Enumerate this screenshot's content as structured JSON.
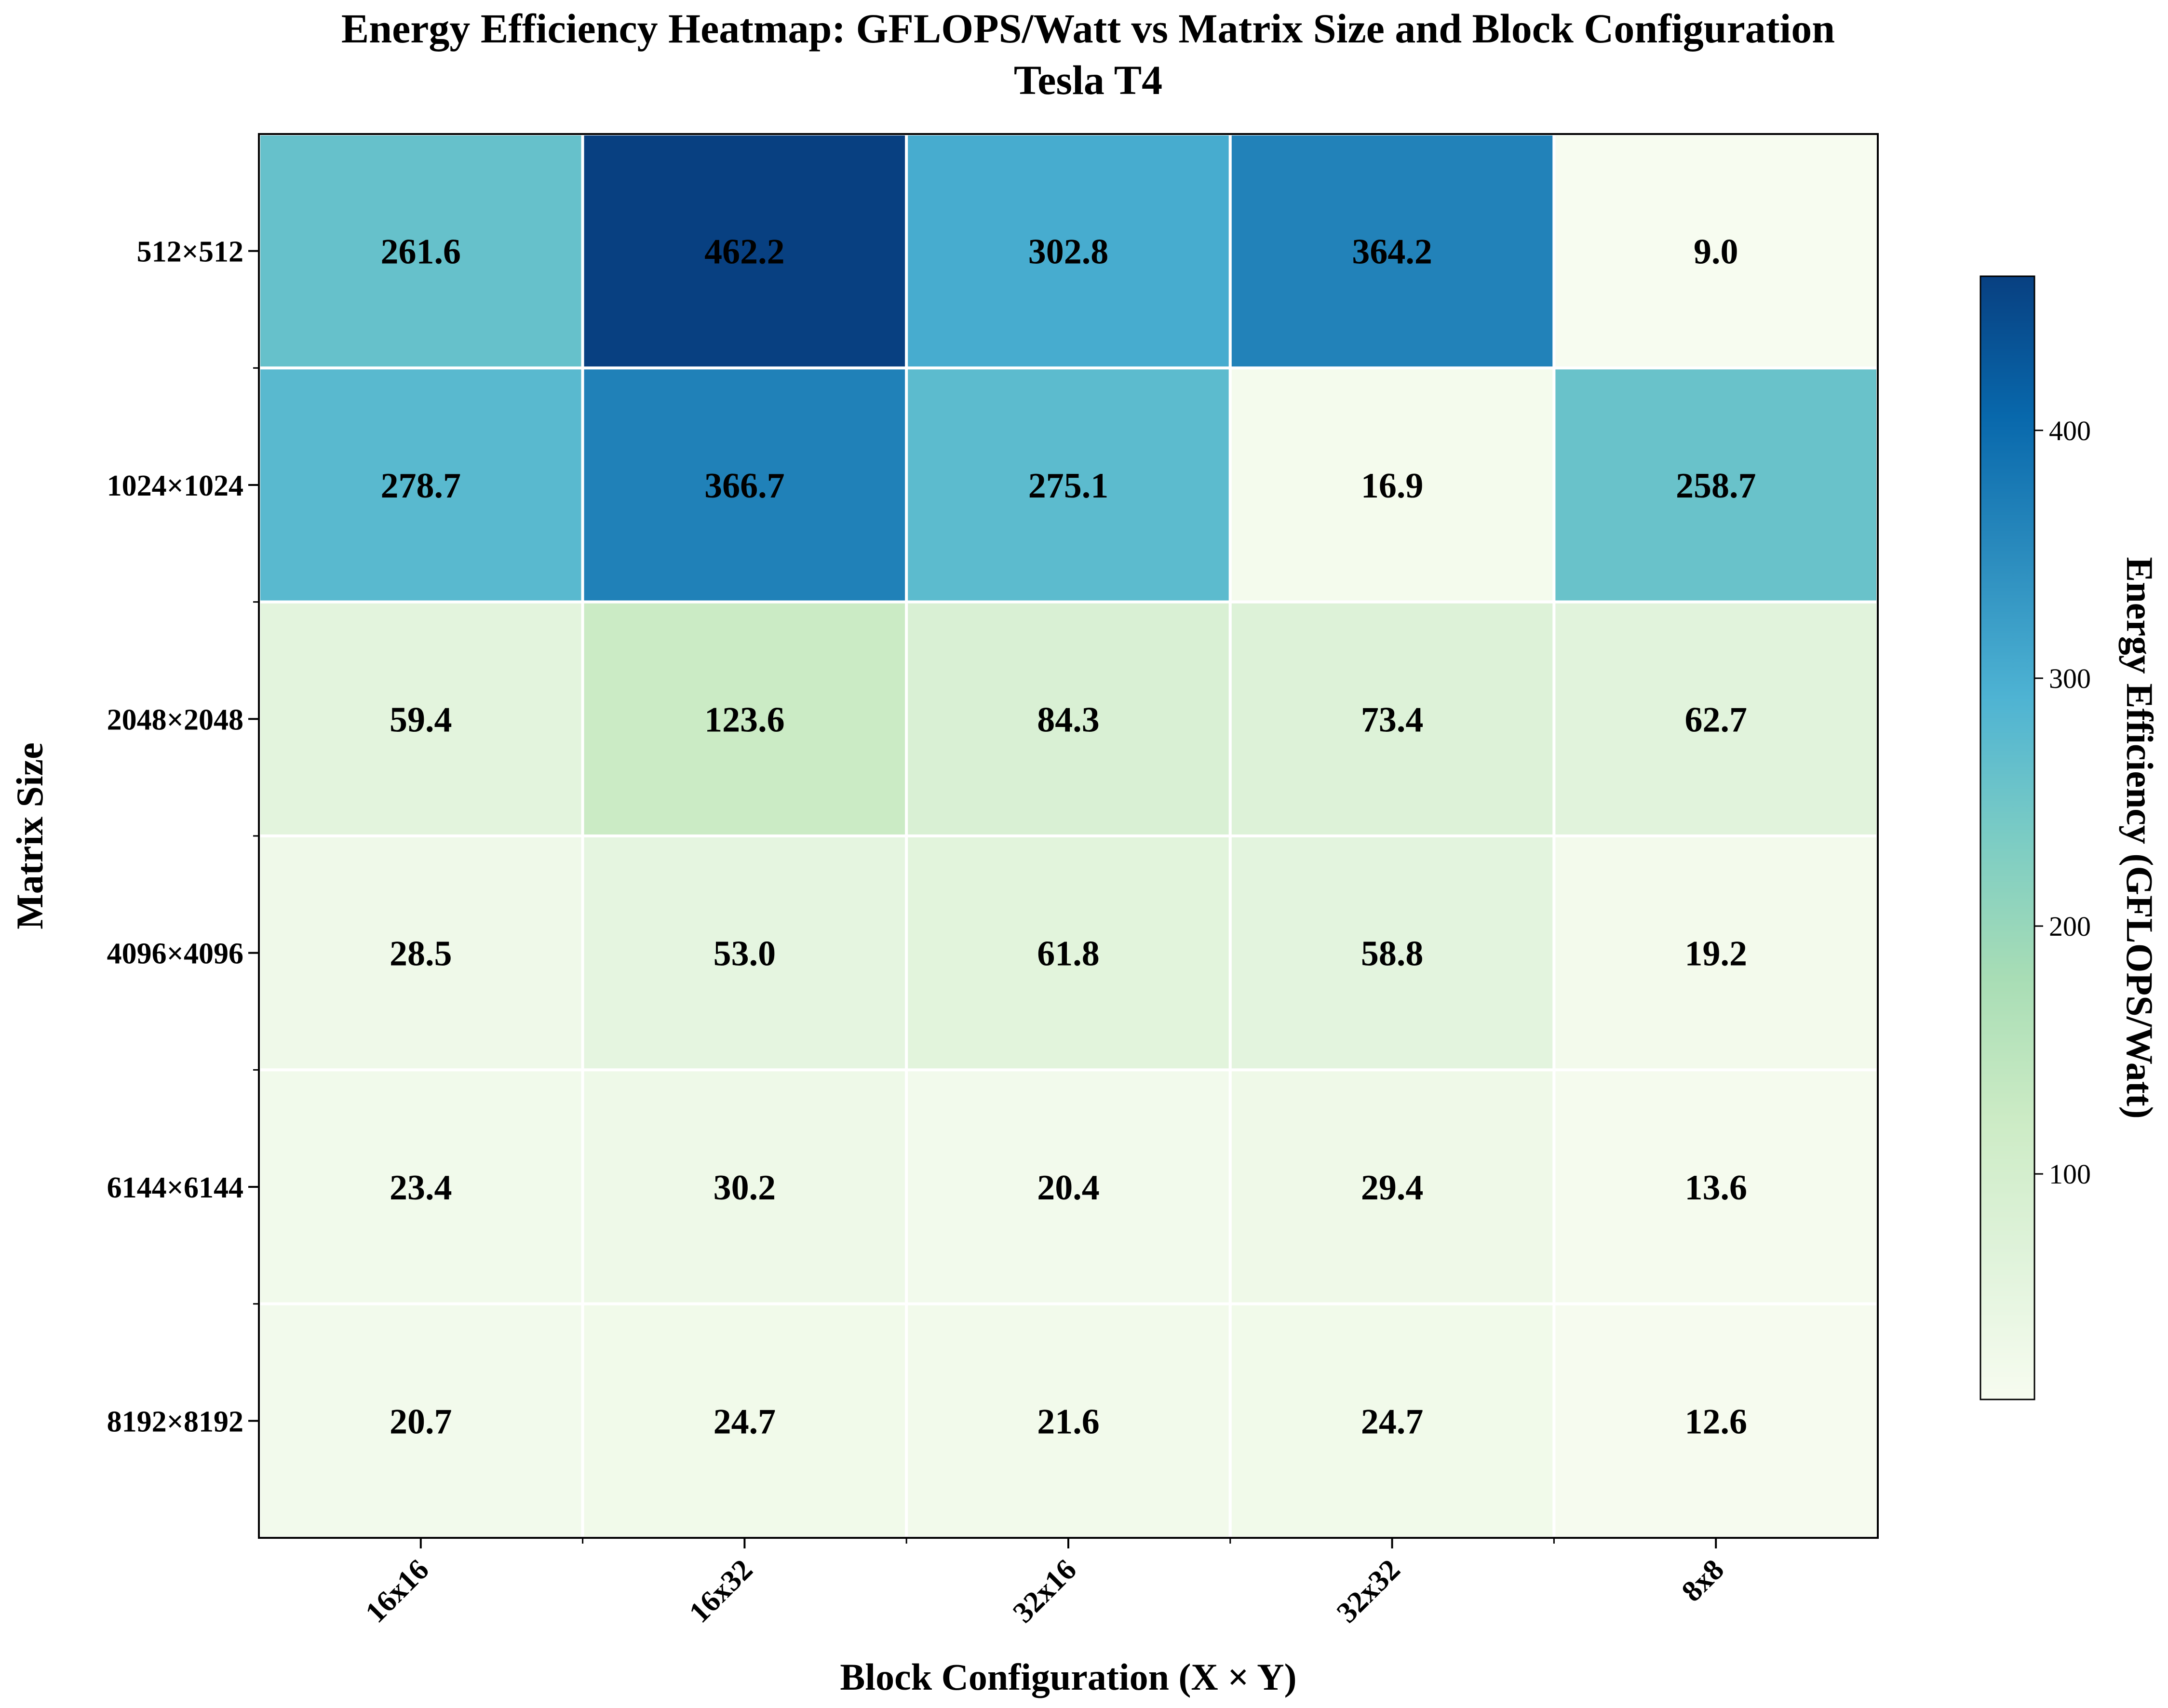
{
  "chart_data": {
    "type": "heatmap",
    "title": "Energy Efficiency Heatmap: GFLOPS/Watt vs Matrix Size and Block Configuration",
    "subtitle": "Tesla T4",
    "xlabel": "Block Configuration (X × Y)",
    "ylabel": "Matrix Size",
    "x_categories": [
      "16x16",
      "16x32",
      "32x16",
      "32x32",
      "8x8"
    ],
    "y_categories": [
      "512×512",
      "1024×1024",
      "2048×2048",
      "4096×4096",
      "6144×6144",
      "8192×8192"
    ],
    "values": [
      [
        261.6,
        462.2,
        302.8,
        364.2,
        9.0
      ],
      [
        278.7,
        366.7,
        275.1,
        16.9,
        258.7
      ],
      [
        59.4,
        123.6,
        84.3,
        73.4,
        62.7
      ],
      [
        28.5,
        53.0,
        61.8,
        58.8,
        19.2
      ],
      [
        23.4,
        30.2,
        20.4,
        29.4,
        13.6
      ],
      [
        20.7,
        24.7,
        21.6,
        24.7,
        12.6
      ]
    ],
    "colorbar": {
      "label": "Energy Efficiency (GFLOPS/Watt)",
      "ticks": [
        100,
        200,
        300,
        400
      ],
      "vmin": 9.0,
      "vmax": 462.2,
      "colormap": "GnBu"
    },
    "grid": false
  }
}
